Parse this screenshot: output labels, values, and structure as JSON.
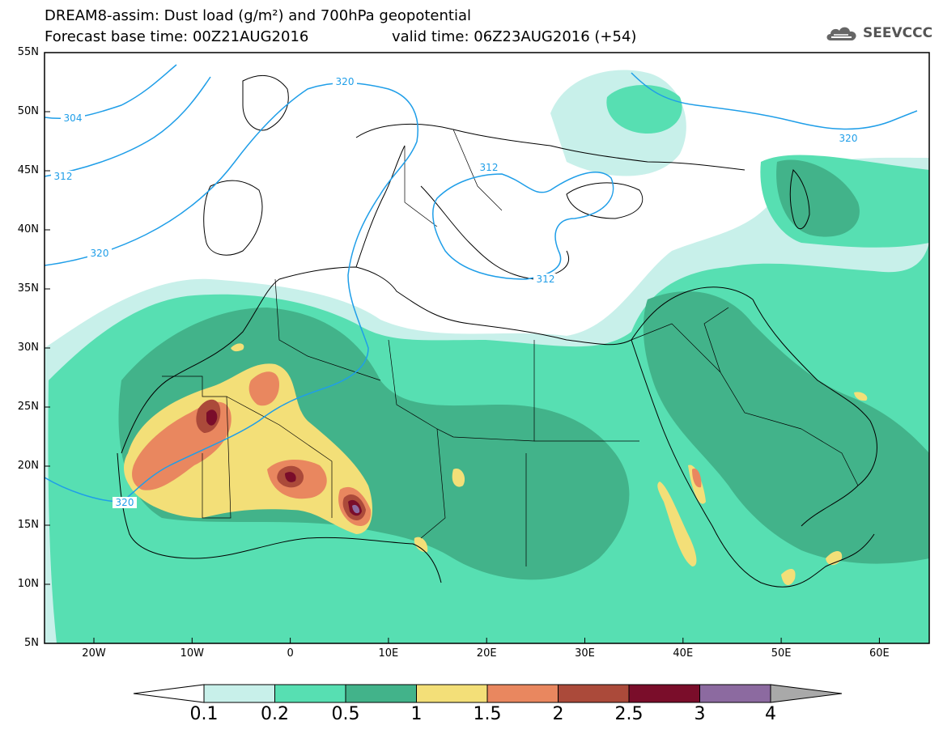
{
  "header": {
    "title_line1": "DREAM8-assim: Dust load (g/m²) and 700hPa geopotential",
    "title_line2": "Forecast base time: 00Z21AUG2016",
    "valid_time": "valid time: 06Z23AUG2016 (+54)"
  },
  "logo": {
    "icon": "cloud-icon",
    "text": "SEEVCCC"
  },
  "map": {
    "lat_labels": [
      "55N",
      "50N",
      "45N",
      "40N",
      "35N",
      "30N",
      "25N",
      "20N",
      "15N",
      "10N",
      "5N"
    ],
    "lon_labels": [
      "20W",
      "10W",
      "0",
      "10E",
      "20E",
      "30E",
      "40E",
      "50E",
      "60E"
    ],
    "contour_labels": [
      "304",
      "312",
      "320",
      "320",
      "312",
      "312",
      "320",
      "320"
    ],
    "contour_color": "#1f9ee8"
  },
  "colorbar": {
    "tick_labels": [
      "0.1",
      "0.2",
      "0.5",
      "1",
      "1.5",
      "2",
      "2.5",
      "3",
      "4"
    ],
    "colors": [
      "#ffffff",
      "#c8f0ea",
      "#57dfb2",
      "#42b38a",
      "#f3df78",
      "#e9875f",
      "#ab4a3a",
      "#7a0d2a",
      "#8c6aa0",
      "#a9a9a9"
    ]
  }
}
